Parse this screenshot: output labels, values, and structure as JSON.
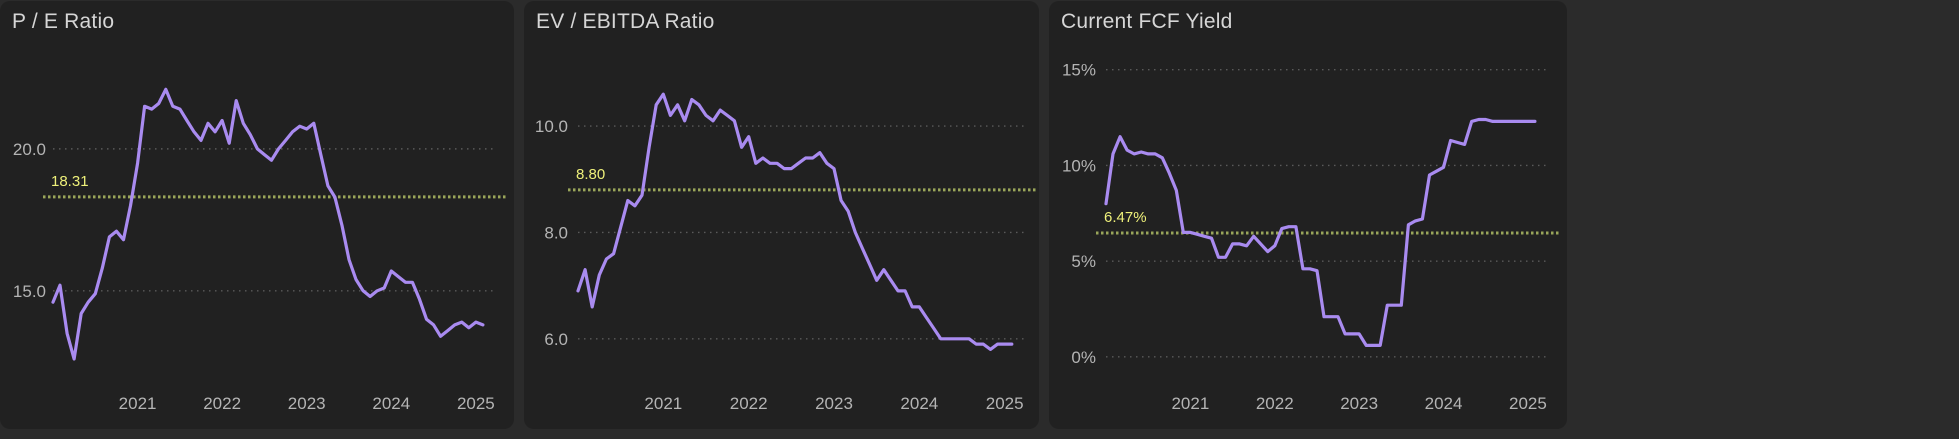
{
  "colors": {
    "line": "#a98bf0",
    "average": "#9aa65a",
    "average_label": "#eef07a",
    "grid": "#5a5a5a"
  },
  "chart_data": [
    {
      "type": "line",
      "title": "P / E Ratio",
      "x_ticks": [
        "2021",
        "2022",
        "2023",
        "2024",
        "2025"
      ],
      "y_ticks": [
        {
          "value": 15,
          "label": "15.0"
        },
        {
          "value": 20,
          "label": "20.0"
        }
      ],
      "xlim": [
        "2020-01",
        "2025-04"
      ],
      "ylim": [
        12.0,
        23.8
      ],
      "grid": true,
      "average": {
        "value": 18.31,
        "label": "18.31"
      },
      "x": [
        "2020-01",
        "2020-02",
        "2020-03",
        "2020-04",
        "2020-05",
        "2020-06",
        "2020-07",
        "2020-08",
        "2020-09",
        "2020-10",
        "2020-11",
        "2020-12",
        "2021-01",
        "2021-02",
        "2021-03",
        "2021-04",
        "2021-05",
        "2021-06",
        "2021-07",
        "2021-08",
        "2021-09",
        "2021-10",
        "2021-11",
        "2021-12",
        "2022-01",
        "2022-02",
        "2022-03",
        "2022-04",
        "2022-05",
        "2022-06",
        "2022-07",
        "2022-08",
        "2022-09",
        "2022-10",
        "2022-11",
        "2022-12",
        "2023-01",
        "2023-02",
        "2023-03",
        "2023-04",
        "2023-05",
        "2023-06",
        "2023-07",
        "2023-08",
        "2023-09",
        "2023-10",
        "2023-11",
        "2023-12",
        "2024-01",
        "2024-02",
        "2024-03",
        "2024-04",
        "2024-05",
        "2024-06",
        "2024-07",
        "2024-08",
        "2024-09",
        "2024-10",
        "2024-11",
        "2024-12",
        "2025-01",
        "2025-02"
      ],
      "values": [
        14.6,
        15.2,
        13.5,
        12.6,
        14.2,
        14.6,
        14.9,
        15.8,
        16.9,
        17.1,
        16.8,
        18.0,
        19.5,
        21.5,
        21.4,
        21.6,
        22.1,
        21.5,
        21.4,
        21.0,
        20.6,
        20.3,
        20.9,
        20.6,
        21.0,
        20.2,
        21.7,
        20.9,
        20.5,
        20.0,
        19.8,
        19.6,
        20.0,
        20.3,
        20.6,
        20.8,
        20.7,
        20.9,
        19.8,
        18.7,
        18.3,
        17.3,
        16.1,
        15.4,
        15.0,
        14.8,
        15.0,
        15.1,
        15.7,
        15.5,
        15.3,
        15.3,
        14.7,
        14.0,
        13.8,
        13.4,
        13.6,
        13.8,
        13.9,
        13.7,
        13.9,
        13.8
      ]
    },
    {
      "type": "line",
      "title": "EV / EBITDA Ratio",
      "x_ticks": [
        "2021",
        "2022",
        "2023",
        "2024",
        "2025"
      ],
      "y_ticks": [
        {
          "value": 6,
          "label": "6.0"
        },
        {
          "value": 8,
          "label": "8.0"
        },
        {
          "value": 10,
          "label": "10.0"
        }
      ],
      "xlim": [
        "2020-01",
        "2025-04"
      ],
      "ylim": [
        5.3,
        11.6
      ],
      "grid": true,
      "average": {
        "value": 8.8,
        "label": "8.80"
      },
      "x": [
        "2020-01",
        "2020-02",
        "2020-03",
        "2020-04",
        "2020-05",
        "2020-06",
        "2020-07",
        "2020-08",
        "2020-09",
        "2020-10",
        "2020-11",
        "2020-12",
        "2021-01",
        "2021-02",
        "2021-03",
        "2021-04",
        "2021-05",
        "2021-06",
        "2021-07",
        "2021-08",
        "2021-09",
        "2021-10",
        "2021-11",
        "2021-12",
        "2022-01",
        "2022-02",
        "2022-03",
        "2022-04",
        "2022-05",
        "2022-06",
        "2022-07",
        "2022-08",
        "2022-09",
        "2022-10",
        "2022-11",
        "2022-12",
        "2023-01",
        "2023-02",
        "2023-03",
        "2023-04",
        "2023-05",
        "2023-06",
        "2023-07",
        "2023-08",
        "2023-09",
        "2023-10",
        "2023-11",
        "2023-12",
        "2024-01",
        "2024-02",
        "2024-03",
        "2024-04",
        "2024-05",
        "2024-06",
        "2024-07",
        "2024-08",
        "2024-09",
        "2024-10",
        "2024-11",
        "2024-12",
        "2025-01",
        "2025-02"
      ],
      "values": [
        6.9,
        7.3,
        6.6,
        7.2,
        7.5,
        7.6,
        8.1,
        8.6,
        8.5,
        8.7,
        9.6,
        10.4,
        10.6,
        10.2,
        10.4,
        10.1,
        10.5,
        10.4,
        10.2,
        10.1,
        10.3,
        10.2,
        10.1,
        9.6,
        9.8,
        9.3,
        9.4,
        9.3,
        9.3,
        9.2,
        9.2,
        9.3,
        9.4,
        9.4,
        9.5,
        9.3,
        9.2,
        8.6,
        8.4,
        8.0,
        7.7,
        7.4,
        7.1,
        7.3,
        7.1,
        6.9,
        6.9,
        6.6,
        6.6,
        6.4,
        6.2,
        6.0,
        6.0,
        6.0,
        6.0,
        6.0,
        5.9,
        5.9,
        5.8,
        5.9,
        5.9,
        5.9
      ]
    },
    {
      "type": "line",
      "title": "Current FCF Yield",
      "x_ticks": [
        "2021",
        "2022",
        "2023",
        "2024",
        "2025"
      ],
      "y_ticks": [
        {
          "value": 0,
          "label": "0%"
        },
        {
          "value": 5,
          "label": "5%"
        },
        {
          "value": 10,
          "label": "10%"
        },
        {
          "value": 15,
          "label": "15%"
        }
      ],
      "xlim": [
        "2020-01",
        "2025-04"
      ],
      "ylim": [
        -1.0,
        16.5
      ],
      "grid": true,
      "average": {
        "value": 6.47,
        "label": "6.47%"
      },
      "x": [
        "2020-01",
        "2020-02",
        "2020-03",
        "2020-04",
        "2020-05",
        "2020-06",
        "2020-07",
        "2020-08",
        "2020-09",
        "2020-10",
        "2020-11",
        "2020-12",
        "2021-01",
        "2021-02",
        "2021-03",
        "2021-04",
        "2021-05",
        "2021-06",
        "2021-07",
        "2021-08",
        "2021-09",
        "2021-10",
        "2021-11",
        "2021-12",
        "2022-01",
        "2022-02",
        "2022-03",
        "2022-04",
        "2022-05",
        "2022-06",
        "2022-07",
        "2022-08",
        "2022-09",
        "2022-10",
        "2022-11",
        "2022-12",
        "2023-01",
        "2023-02",
        "2023-03",
        "2023-04",
        "2023-05",
        "2023-06",
        "2023-07",
        "2023-08",
        "2023-09",
        "2023-10",
        "2023-11",
        "2023-12",
        "2024-01",
        "2024-02",
        "2024-03",
        "2024-04",
        "2024-05",
        "2024-06",
        "2024-07",
        "2024-08",
        "2024-09",
        "2024-10",
        "2024-11",
        "2024-12",
        "2025-01",
        "2025-02"
      ],
      "values": [
        8.0,
        10.6,
        11.5,
        10.8,
        10.6,
        10.7,
        10.6,
        10.6,
        10.4,
        9.6,
        8.7,
        6.5,
        6.5,
        6.4,
        6.3,
        6.2,
        5.2,
        5.2,
        5.9,
        5.9,
        5.8,
        6.3,
        5.9,
        5.5,
        5.8,
        6.7,
        6.8,
        6.8,
        4.6,
        4.6,
        4.5,
        2.1,
        2.1,
        2.1,
        1.2,
        1.2,
        1.2,
        0.6,
        0.6,
        0.6,
        2.7,
        2.7,
        2.7,
        6.9,
        7.1,
        7.2,
        9.5,
        9.7,
        9.9,
        11.3,
        11.2,
        11.1,
        12.3,
        12.4,
        12.4,
        12.3,
        12.3,
        12.3,
        12.3,
        12.3,
        12.3,
        12.3
      ]
    }
  ]
}
